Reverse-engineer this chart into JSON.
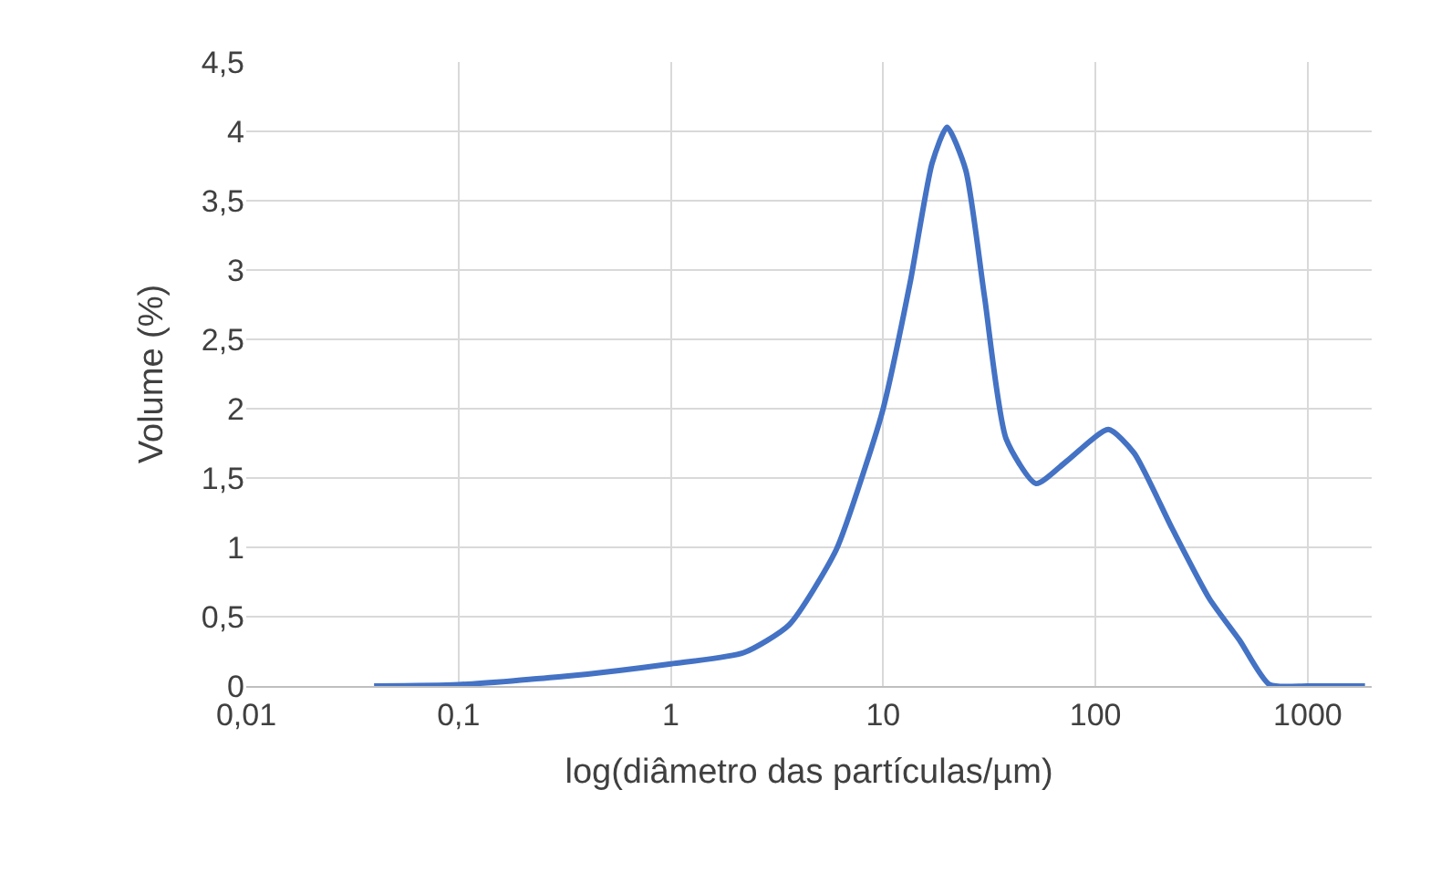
{
  "chart_data": {
    "type": "line",
    "xlabel": "log(diâmetro das partículas/µm)",
    "ylabel": "Volume (%)",
    "log": "x",
    "grid": true,
    "marker": "none",
    "line_style": "solid",
    "xlim": [
      0.01,
      2000
    ],
    "xticks": [
      {
        "value": 0.01,
        "label": "0,01"
      },
      {
        "value": 0.1,
        "label": "0,1"
      },
      1,
      10,
      100,
      1000
    ],
    "ylim": [
      0,
      4.5
    ],
    "yticks": [
      0,
      {
        "value": 0.5,
        "label": "0,5"
      },
      1,
      {
        "value": 1.5,
        "label": "1,5"
      },
      2,
      {
        "value": 2.5,
        "label": "2,5"
      },
      3,
      {
        "value": 3.5,
        "label": "3,5"
      },
      4,
      {
        "value": 4.5,
        "label": "4,5"
      }
    ],
    "series": [
      {
        "color": "#4472c4",
        "x": [
          0.04,
          0.1,
          0.32,
          1,
          2.2,
          3.6,
          6,
          8.2,
          10,
          13.4,
          17,
          20,
          24.5,
          30,
          38,
          52.5,
          73,
          115,
          152,
          229,
          344,
          477,
          660,
          1000,
          1860
        ],
        "values": [
          0,
          0.01,
          0.07,
          0.16,
          0.24,
          0.44,
          0.98,
          1.57,
          2.0,
          2.91,
          3.77,
          4.03,
          3.72,
          2.81,
          1.78,
          1.46,
          1.62,
          1.85,
          1.68,
          1.14,
          0.63,
          0.33,
          0.01,
          0,
          0
        ]
      }
    ]
  }
}
